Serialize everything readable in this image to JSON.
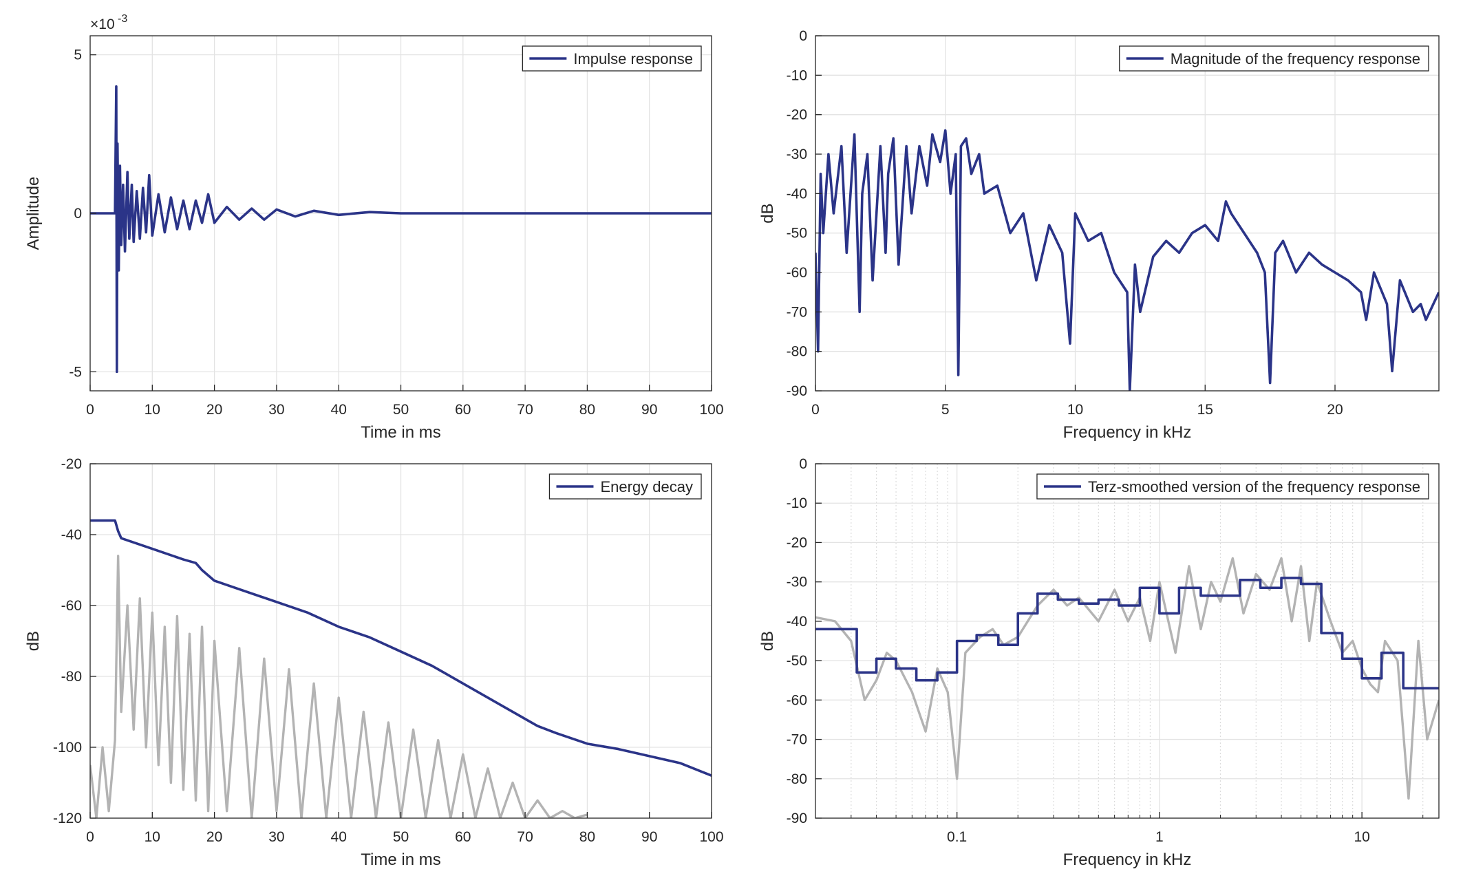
{
  "chart_data": [
    {
      "type": "line",
      "xlabel": "Time in ms",
      "ylabel": "Amplitude",
      "y_exponent_base": "×10",
      "y_exponent": "-3",
      "xlim": [
        0,
        100
      ],
      "ylim": [
        -5.6,
        5.6
      ],
      "xticks": [
        0,
        10,
        20,
        30,
        40,
        50,
        60,
        70,
        80,
        90,
        100
      ],
      "yticks": [
        -5,
        0,
        5
      ],
      "grid": true,
      "legend": "northeast",
      "series": [
        {
          "name": "Impulse response",
          "color": "#2b3488",
          "x": [
            0,
            4.0,
            4.2,
            4.3,
            4.4,
            4.6,
            4.8,
            5.0,
            5.3,
            5.6,
            6.0,
            6.3,
            6.7,
            7.0,
            7.5,
            8.0,
            8.5,
            9.0,
            9.5,
            10,
            11,
            12,
            13,
            14,
            15,
            16,
            17,
            18,
            19,
            20,
            22,
            24,
            26,
            28,
            30,
            33,
            36,
            40,
            45,
            50,
            60,
            70,
            80,
            90,
            100
          ],
          "values": [
            0,
            0,
            4.0,
            -5.0,
            2.2,
            -1.8,
            1.5,
            -1.0,
            0.9,
            -1.2,
            1.3,
            -0.8,
            0.9,
            -0.9,
            0.7,
            -0.8,
            0.8,
            -0.6,
            1.2,
            -0.7,
            0.6,
            -0.6,
            0.5,
            -0.5,
            0.4,
            -0.5,
            0.4,
            -0.3,
            0.6,
            -0.3,
            0.2,
            -0.2,
            0.15,
            -0.2,
            0.12,
            -0.1,
            0.08,
            -0.05,
            0.04,
            0,
            0,
            0,
            0,
            0,
            0
          ]
        }
      ]
    },
    {
      "type": "line",
      "xlabel": "Frequency in kHz",
      "ylabel": "dB",
      "xlim": [
        0,
        24
      ],
      "ylim": [
        -90,
        0
      ],
      "xticks": [
        0,
        5,
        10,
        15,
        20
      ],
      "yticks": [
        -90,
        -80,
        -70,
        -60,
        -50,
        -40,
        -30,
        -20,
        -10,
        0
      ],
      "grid": true,
      "legend": "northeast",
      "series": [
        {
          "name": "Magnitude of the frequency response",
          "color": "#2b3488",
          "x": [
            0,
            0.1,
            0.2,
            0.3,
            0.5,
            0.7,
            1.0,
            1.2,
            1.5,
            1.7,
            1.8,
            2.0,
            2.2,
            2.5,
            2.7,
            2.8,
            3.0,
            3.2,
            3.5,
            3.7,
            4.0,
            4.3,
            4.5,
            4.8,
            5.0,
            5.2,
            5.4,
            5.5,
            5.6,
            5.8,
            6.0,
            6.3,
            6.5,
            7.0,
            7.5,
            8.0,
            8.5,
            9.0,
            9.5,
            9.8,
            10,
            10.5,
            11,
            11.5,
            12,
            12.1,
            12.3,
            12.5,
            13,
            13.5,
            14,
            14.5,
            15,
            15.5,
            15.8,
            16,
            16.5,
            17,
            17.3,
            17.5,
            17.7,
            18,
            18.5,
            19,
            19.5,
            20,
            20.5,
            21,
            21.2,
            21.5,
            22,
            22.2,
            22.5,
            23,
            23.3,
            23.5,
            24
          ],
          "values": [
            -55,
            -80,
            -35,
            -50,
            -30,
            -45,
            -28,
            -55,
            -25,
            -70,
            -40,
            -30,
            -62,
            -28,
            -55,
            -35,
            -26,
            -58,
            -28,
            -45,
            -28,
            -38,
            -25,
            -32,
            -24,
            -40,
            -30,
            -86,
            -28,
            -26,
            -35,
            -30,
            -40,
            -38,
            -50,
            -45,
            -62,
            -48,
            -55,
            -78,
            -45,
            -52,
            -50,
            -60,
            -65,
            -90,
            -58,
            -70,
            -56,
            -52,
            -55,
            -50,
            -48,
            -52,
            -42,
            -45,
            -50,
            -55,
            -60,
            -88,
            -55,
            -52,
            -60,
            -55,
            -58,
            -60,
            -62,
            -65,
            -72,
            -60,
            -68,
            -85,
            -62,
            -70,
            -68,
            -72,
            -65
          ]
        }
      ]
    },
    {
      "type": "line",
      "xlabel": "Time in ms",
      "ylabel": "dB",
      "xlim": [
        0,
        100
      ],
      "ylim": [
        -120,
        -20
      ],
      "xticks": [
        0,
        10,
        20,
        30,
        40,
        50,
        60,
        70,
        80,
        90,
        100
      ],
      "yticks": [
        -120,
        -100,
        -80,
        -60,
        -40,
        -20
      ],
      "grid": true,
      "legend": "northeast",
      "series": [
        {
          "color": "#b3b3b3",
          "x": [
            0,
            1,
            2,
            3,
            4,
            4.5,
            5,
            6,
            7,
            8,
            9,
            10,
            11,
            12,
            13,
            14,
            15,
            16,
            17,
            18,
            19,
            20,
            22,
            24,
            26,
            28,
            30,
            32,
            34,
            36,
            38,
            40,
            42,
            44,
            46,
            48,
            50,
            52,
            54,
            56,
            58,
            60,
            62,
            64,
            66,
            68,
            70,
            72,
            74,
            76,
            78,
            80
          ],
          "values": [
            -105,
            -120,
            -100,
            -118,
            -98,
            -46,
            -90,
            -60,
            -95,
            -58,
            -100,
            -62,
            -105,
            -66,
            -110,
            -63,
            -112,
            -68,
            -115,
            -66,
            -118,
            -70,
            -118,
            -72,
            -120,
            -75,
            -118,
            -78,
            -120,
            -82,
            -120,
            -86,
            -120,
            -90,
            -120,
            -93,
            -120,
            -95,
            -120,
            -98,
            -120,
            -102,
            -120,
            -106,
            -120,
            -110,
            -120,
            -115,
            -120,
            -118,
            -120,
            -119
          ]
        },
        {
          "name": "Energy decay",
          "color": "#2b3488",
          "x": [
            0,
            4,
            4.5,
            5,
            10,
            15,
            17,
            18,
            20,
            25,
            30,
            35,
            40,
            45,
            50,
            55,
            57,
            60,
            65,
            70,
            72,
            75,
            80,
            85,
            90,
            95,
            100
          ],
          "values": [
            -36,
            -36,
            -39,
            -41,
            -44,
            -47,
            -48,
            -50,
            -53,
            -56,
            -59,
            -62,
            -66,
            -69,
            -73,
            -77,
            -79,
            -82,
            -87,
            -92,
            -94,
            -96,
            -99,
            -100.5,
            -102.5,
            -104.5,
            -108
          ]
        }
      ]
    },
    {
      "type": "line",
      "xlabel": "Frequency in kHz",
      "ylabel": "dB",
      "xscale": "log",
      "xlim": [
        0.02,
        24
      ],
      "ylim": [
        -90,
        0
      ],
      "xticks": [
        0.1,
        1,
        10
      ],
      "xminorticks": [
        0.03,
        0.04,
        0.05,
        0.06,
        0.07,
        0.08,
        0.09,
        0.2,
        0.3,
        0.4,
        0.5,
        0.6,
        0.7,
        0.8,
        0.9,
        2,
        3,
        4,
        5,
        6,
        7,
        8,
        9,
        20
      ],
      "yticks": [
        -90,
        -80,
        -70,
        -60,
        -50,
        -40,
        -30,
        -20,
        -10,
        0
      ],
      "grid": true,
      "legend": "northeast",
      "series": [
        {
          "color": "#b3b3b3",
          "x": [
            0.02,
            0.025,
            0.03,
            0.035,
            0.04,
            0.045,
            0.05,
            0.06,
            0.07,
            0.08,
            0.09,
            0.1,
            0.11,
            0.13,
            0.15,
            0.17,
            0.2,
            0.25,
            0.3,
            0.35,
            0.4,
            0.5,
            0.6,
            0.7,
            0.8,
            0.9,
            1.0,
            1.2,
            1.4,
            1.6,
            1.8,
            2.0,
            2.3,
            2.6,
            3.0,
            3.5,
            4.0,
            4.5,
            5.0,
            5.5,
            6.0,
            7.0,
            8.0,
            9.0,
            10,
            11,
            12,
            13,
            15,
            17,
            19,
            21,
            24
          ],
          "values": [
            -39,
            -40,
            -45,
            -60,
            -55,
            -48,
            -50,
            -58,
            -68,
            -52,
            -58,
            -80,
            -48,
            -44,
            -42,
            -46,
            -44,
            -36,
            -32,
            -36,
            -34,
            -40,
            -32,
            -40,
            -34,
            -45,
            -30,
            -48,
            -26,
            -42,
            -30,
            -35,
            -24,
            -38,
            -28,
            -32,
            -24,
            -40,
            -26,
            -45,
            -30,
            -40,
            -48,
            -45,
            -52,
            -56,
            -58,
            -45,
            -50,
            -85,
            -45,
            -70,
            -60
          ]
        },
        {
          "name": "Terz-smoothed version of the frequency response",
          "color": "#2b3488",
          "x": [
            0.02,
            0.032,
            0.032,
            0.04,
            0.04,
            0.05,
            0.05,
            0.063,
            0.063,
            0.08,
            0.08,
            0.1,
            0.1,
            0.125,
            0.125,
            0.16,
            0.16,
            0.2,
            0.2,
            0.25,
            0.25,
            0.315,
            0.315,
            0.4,
            0.4,
            0.5,
            0.5,
            0.63,
            0.63,
            0.8,
            0.8,
            1.0,
            1.0,
            1.25,
            1.25,
            1.6,
            1.6,
            2.5,
            2.5,
            3.15,
            3.15,
            4.0,
            4.0,
            5.0,
            5.0,
            6.3,
            6.3,
            8.0,
            8.0,
            10,
            10,
            12.5,
            12.5,
            16,
            16,
            24
          ],
          "values": [
            -42,
            -42,
            -53,
            -53,
            -49.5,
            -49.5,
            -52,
            -52,
            -55,
            -55,
            -53,
            -53,
            -45,
            -45,
            -43.5,
            -43.5,
            -46,
            -46,
            -38,
            -38,
            -33,
            -33,
            -34.5,
            -34.5,
            -35.5,
            -35.5,
            -34.5,
            -34.5,
            -36,
            -36,
            -31.5,
            -31.5,
            -38,
            -38,
            -31.5,
            -31.5,
            -33.5,
            -33.5,
            -29.5,
            -29.5,
            -31.5,
            -31.5,
            -29,
            -29,
            -30.5,
            -30.5,
            -43,
            -43,
            -49.5,
            -49.5,
            -54.5,
            -54.5,
            -48,
            -48,
            -57,
            -57
          ]
        }
      ]
    }
  ]
}
